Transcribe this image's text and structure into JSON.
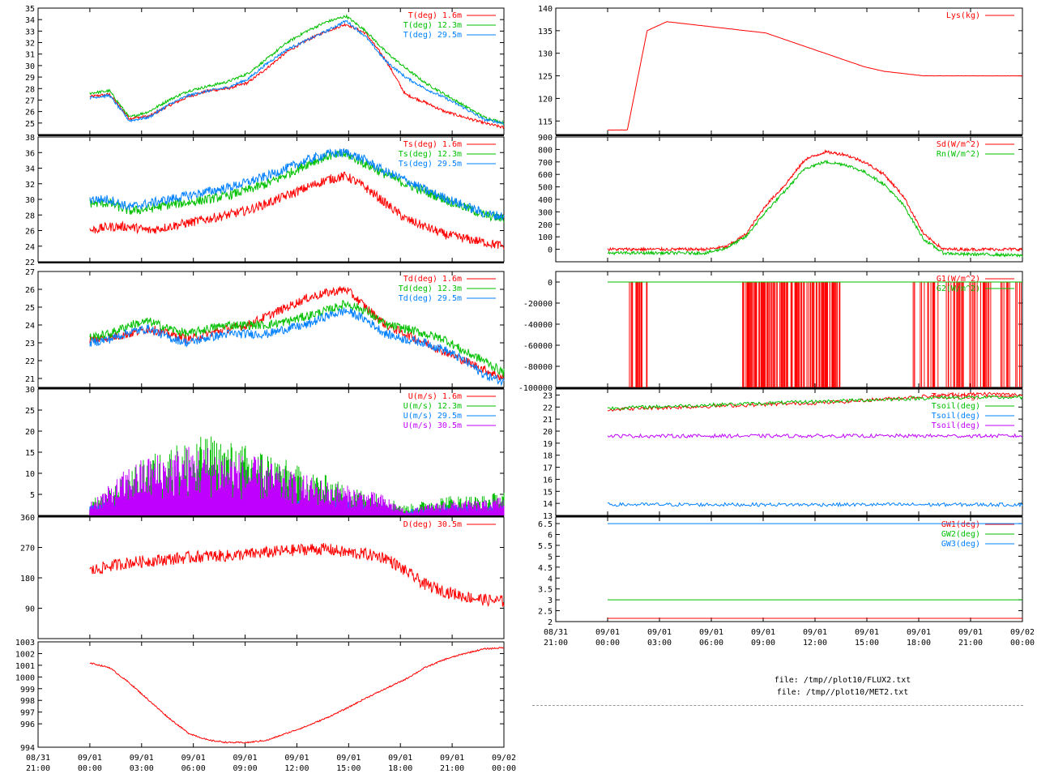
{
  "colors": {
    "red": "#ff0000",
    "green": "#00c000",
    "blue": "#0080ff",
    "magenta": "#c000ff"
  },
  "files": [
    "file: /tmp//plot10/FLUX2.txt",
    "file: /tmp//plot10/MET2.txt"
  ],
  "chart_data": [
    {
      "id": "p-temp",
      "type": "line",
      "ylim": [
        24,
        35
      ],
      "yticks": [
        "25",
        "26",
        "27",
        "28",
        "29",
        "30",
        "31",
        "32",
        "33",
        "34",
        "35"
      ],
      "x_start_hour": 0,
      "x_end_hour": 24,
      "series": [
        {
          "name": "T(deg)  1.6m",
          "color": "red",
          "values": [
            27.3,
            27.5,
            25.4,
            25.6,
            26.5,
            27.3,
            27.8,
            28.0,
            28.5,
            29.8,
            31.2,
            32.2,
            33.0,
            33.6,
            32.8,
            30.5,
            27.5,
            26.8,
            26.0,
            25.5,
            25.0,
            24.6
          ]
        },
        {
          "name": "T(deg) 12.3m",
          "color": "green",
          "values": [
            27.6,
            27.8,
            25.5,
            26.0,
            27.0,
            27.8,
            28.2,
            28.6,
            29.3,
            30.6,
            32.0,
            33.0,
            33.8,
            34.3,
            33.0,
            31.2,
            29.8,
            28.5,
            27.5,
            26.5,
            25.5,
            25.0
          ]
        },
        {
          "name": "T(deg) 29.5m",
          "color": "blue",
          "values": [
            27.2,
            27.4,
            25.2,
            25.5,
            26.6,
            27.4,
            27.8,
            28.1,
            28.8,
            30.2,
            31.4,
            32.2,
            33.0,
            33.9,
            32.5,
            30.4,
            29.0,
            28.0,
            27.2,
            26.3,
            25.3,
            25.0
          ]
        }
      ]
    },
    {
      "id": "p-tsonic",
      "type": "line",
      "ylim": [
        22,
        38
      ],
      "yticks": [
        "22",
        "24",
        "26",
        "28",
        "30",
        "32",
        "34",
        "36",
        "38"
      ],
      "x_start_hour": 0,
      "x_end_hour": 24,
      "series": [
        {
          "name": "Ts(deg)  1.6m",
          "color": "red",
          "values": [
            26.0,
            26.5,
            26.5,
            26.0,
            26.5,
            27.0,
            27.5,
            28.0,
            28.6,
            29.5,
            30.5,
            31.5,
            32.5,
            33.0,
            31.5,
            29.5,
            27.5,
            26.5,
            25.5,
            25.0,
            24.5,
            24.0
          ]
        },
        {
          "name": "Ts(deg) 12.3m",
          "color": "green",
          "values": [
            29.5,
            29.5,
            28.5,
            28.8,
            29.3,
            29.6,
            30.0,
            30.5,
            31.2,
            32.0,
            33.2,
            34.5,
            35.5,
            35.8,
            34.5,
            33.2,
            32.0,
            31.0,
            30.0,
            29.0,
            28.0,
            27.5
          ]
        },
        {
          "name": "Ts(deg) 29.5m",
          "color": "blue",
          "values": [
            30.0,
            30.0,
            29.0,
            29.5,
            30.0,
            30.5,
            31.0,
            31.5,
            32.2,
            33.0,
            34.0,
            35.0,
            35.8,
            36.0,
            35.0,
            33.5,
            32.5,
            31.2,
            30.2,
            29.2,
            28.2,
            27.8
          ]
        }
      ]
    },
    {
      "id": "p-dew",
      "type": "line",
      "ylim": [
        20.5,
        27
      ],
      "yticks": [
        "21",
        "22",
        "23",
        "24",
        "25",
        "26",
        "27"
      ],
      "x_start_hour": 0,
      "x_end_hour": 24,
      "series": [
        {
          "name": "Td(deg)  1.6m",
          "color": "red",
          "values": [
            23.2,
            23.3,
            23.5,
            23.8,
            23.5,
            23.2,
            23.5,
            23.8,
            24.0,
            24.5,
            25.0,
            25.5,
            25.8,
            26.0,
            25.0,
            24.0,
            23.5,
            23.0,
            22.5,
            22.0,
            21.5,
            21.0
          ]
        },
        {
          "name": "Td(deg) 12.3m",
          "color": "green",
          "values": [
            23.3,
            23.5,
            24.0,
            24.2,
            23.8,
            23.5,
            23.8,
            24.0,
            24.0,
            24.0,
            24.2,
            24.5,
            24.8,
            25.2,
            24.8,
            24.0,
            23.8,
            23.5,
            23.2,
            22.5,
            22.0,
            21.3
          ]
        },
        {
          "name": "Td(deg) 29.5m",
          "color": "blue",
          "values": [
            23.0,
            23.2,
            23.6,
            23.8,
            23.3,
            23.0,
            23.3,
            23.5,
            23.5,
            23.5,
            23.8,
            24.0,
            24.5,
            24.8,
            24.3,
            23.5,
            23.2,
            23.0,
            22.6,
            22.0,
            21.2,
            20.8
          ]
        }
      ]
    },
    {
      "id": "p-wind",
      "type": "line",
      "ylim": [
        0,
        30
      ],
      "yticks": [
        "5",
        "10",
        "15",
        "20",
        "25",
        "30"
      ],
      "x_start_hour": 0,
      "x_end_hour": 24,
      "series": [
        {
          "name": "U(m/s)  1.6m",
          "color": "red",
          "values": [
            1.5,
            2,
            3,
            3.5,
            4,
            4,
            4,
            4,
            3.5,
            3.5,
            3,
            3,
            2.5,
            2,
            1.5,
            1,
            0.5,
            1,
            1,
            1.5,
            1,
            1
          ]
        },
        {
          "name": "U(m/s) 12.3m",
          "color": "green",
          "values": [
            3,
            5,
            9,
            12,
            14,
            15,
            16,
            15,
            14,
            13,
            11,
            9,
            8,
            6,
            5,
            4,
            2,
            3,
            4,
            4,
            4,
            5
          ]
        },
        {
          "name": "U(m/s) 29.5m",
          "color": "blue",
          "values": [
            2,
            3,
            4,
            4,
            4,
            4,
            4,
            4,
            4,
            3,
            3,
            3,
            3,
            3,
            2,
            2,
            1,
            2,
            2,
            2,
            2,
            2
          ]
        },
        {
          "name": "U(m/s) 30.5m",
          "color": "magenta",
          "values": [
            3,
            6,
            10,
            12,
            13,
            14,
            14,
            13,
            12,
            11,
            9,
            8,
            7,
            6,
            5,
            4,
            1,
            2,
            3,
            3,
            3,
            4
          ]
        }
      ]
    },
    {
      "id": "p-dir",
      "type": "line",
      "ylim": [
        0,
        360
      ],
      "yticks": [
        "90",
        "180",
        "270",
        "360"
      ],
      "x_start_hour": 0,
      "x_end_hour": 24,
      "series": [
        {
          "name": "D(deg)  30.5m",
          "color": "red",
          "values": [
            200,
            215,
            225,
            230,
            235,
            240,
            245,
            245,
            250,
            255,
            260,
            265,
            265,
            255,
            250,
            240,
            200,
            160,
            140,
            125,
            115,
            110
          ]
        }
      ]
    },
    {
      "id": "p-press",
      "type": "line",
      "ylim": [
        994,
        1003
      ],
      "yticks": [
        "994",
        "996",
        "997",
        "998",
        "999",
        "1000",
        "1001",
        "1002",
        "1003"
      ],
      "x_start_hour": 0,
      "x_end_hour": 24,
      "series": [
        {
          "name": "",
          "color": "red",
          "values": [
            1001.2,
            1000.8,
            999.5,
            998.0,
            996.5,
            995.2,
            994.6,
            994.4,
            994.4,
            994.6,
            995.2,
            995.8,
            996.5,
            997.3,
            998.2,
            999.0,
            999.8,
            1000.8,
            1001.5,
            1002.0,
            1002.4,
            1002.5
          ]
        }
      ]
    },
    {
      "id": "p-lys",
      "type": "line",
      "ylim": [
        112,
        140
      ],
      "yticks": [
        "115",
        "120",
        "125",
        "130",
        "135",
        "140"
      ],
      "x_start_hour": 0,
      "x_end_hour": 24,
      "series": [
        {
          "name": "Lys(kg)",
          "color": "red",
          "values": [
            113,
            113,
            135,
            137,
            136.5,
            136,
            135.5,
            135,
            134.5,
            133,
            131.5,
            130,
            128.5,
            127,
            126,
            125.5,
            125,
            125,
            125,
            125,
            125,
            125
          ]
        }
      ]
    },
    {
      "id": "p-rad",
      "type": "line",
      "ylim": [
        -100,
        900
      ],
      "yticks": [
        "0",
        "100",
        "200",
        "300",
        "400",
        "500",
        "600",
        "700",
        "800",
        "900"
      ],
      "x_start_hour": 0,
      "x_end_hour": 24,
      "series": [
        {
          "name": "Sd(W/m^2)",
          "color": "red",
          "values": [
            0,
            0,
            0,
            0,
            0,
            0,
            20,
            120,
            350,
            520,
            720,
            780,
            760,
            700,
            600,
            420,
            120,
            0,
            0,
            0,
            0,
            0
          ]
        },
        {
          "name": "Rn(W/m^2)",
          "color": "green",
          "values": [
            -30,
            -30,
            -30,
            -30,
            -30,
            -30,
            10,
            100,
            300,
            470,
            650,
            700,
            680,
            620,
            520,
            350,
            80,
            -30,
            -40,
            -40,
            -45,
            -50
          ]
        }
      ]
    },
    {
      "id": "p-ground",
      "type": "line",
      "ylim": [
        -100000,
        10000
      ],
      "yticks": [
        "-100000",
        "-80000",
        "-60000",
        "-40000",
        "-20000",
        "0"
      ],
      "x_start_hour": -3,
      "x_end_hour": 24,
      "series": [
        {
          "name": "G1(W/m^2)",
          "color": "red",
          "values": [
            0
          ]
        },
        {
          "name": "G2(W/m^2)",
          "color": "green",
          "values": [
            0
          ]
        }
      ]
    },
    {
      "id": "p-tsoil",
      "type": "line",
      "ylim": [
        13,
        23.5
      ],
      "yticks": [
        "13",
        "14",
        "15",
        "16",
        "17",
        "18",
        "19",
        "20",
        "21",
        "22",
        "23"
      ],
      "x_start_hour": 0,
      "x_end_hour": 24,
      "series": [
        {
          "name": "Tsoil(deg)",
          "color": "red",
          "values": [
            21.8,
            21.9,
            22.0,
            22.1,
            22.2,
            22.3,
            22.4,
            22.6,
            22.8,
            23.0,
            23.1,
            23.0
          ]
        },
        {
          "name": "Tsoil(deg)",
          "color": "green",
          "values": [
            21.9,
            22.0,
            22.1,
            22.2,
            22.3,
            22.4,
            22.5,
            22.6,
            22.7,
            22.8,
            22.8,
            22.8
          ]
        },
        {
          "name": "Tsoil(deg)",
          "color": "blue",
          "values": [
            13.9,
            13.9,
            13.9,
            13.9,
            13.9,
            13.9,
            13.9,
            13.9,
            13.9,
            13.9,
            13.9,
            13.9
          ]
        },
        {
          "name": "Tsoil(deg)",
          "color": "magenta",
          "values": [
            19.6,
            19.6,
            19.6,
            19.6,
            19.6,
            19.6,
            19.6,
            19.6,
            19.6,
            19.6,
            19.6,
            19.6
          ]
        }
      ]
    },
    {
      "id": "p-gw",
      "type": "line",
      "ylim": [
        2,
        6.8
      ],
      "yticks": [
        "2",
        "2.5",
        "3",
        "3.5",
        "4",
        "4.5",
        "5",
        "5.5",
        "6",
        "6.5"
      ],
      "x_start_hour": 0,
      "x_end_hour": 24,
      "series": [
        {
          "name": "GW1(deg)",
          "color": "red",
          "values": [
            2.15,
            2.15
          ]
        },
        {
          "name": "GW2(deg)",
          "color": "green",
          "values": [
            3.0,
            3.0
          ]
        },
        {
          "name": "GW3(deg)",
          "color": "blue",
          "values": [
            6.5,
            6.5
          ]
        }
      ]
    }
  ],
  "x_axis_left": {
    "labels": [
      "08/31\n21:00",
      "09/01\n00:00",
      "09/01\n03:00",
      "09/01\n06:00",
      "09/01\n09:00",
      "09/01\n12:00",
      "09/01\n15:00",
      "09/01\n18:00",
      "09/01\n21:00",
      "09/02\n00:00"
    ]
  },
  "x_axis_right": {
    "labels": [
      "08/31\n21:00",
      "09/01\n00:00",
      "09/01\n03:00",
      "09/01\n06:00",
      "09/01\n09:00",
      "09/01\n12:00",
      "09/01\n15:00",
      "09/01\n18:00",
      "09/01\n21:00",
      "09/02\n00:00"
    ]
  }
}
